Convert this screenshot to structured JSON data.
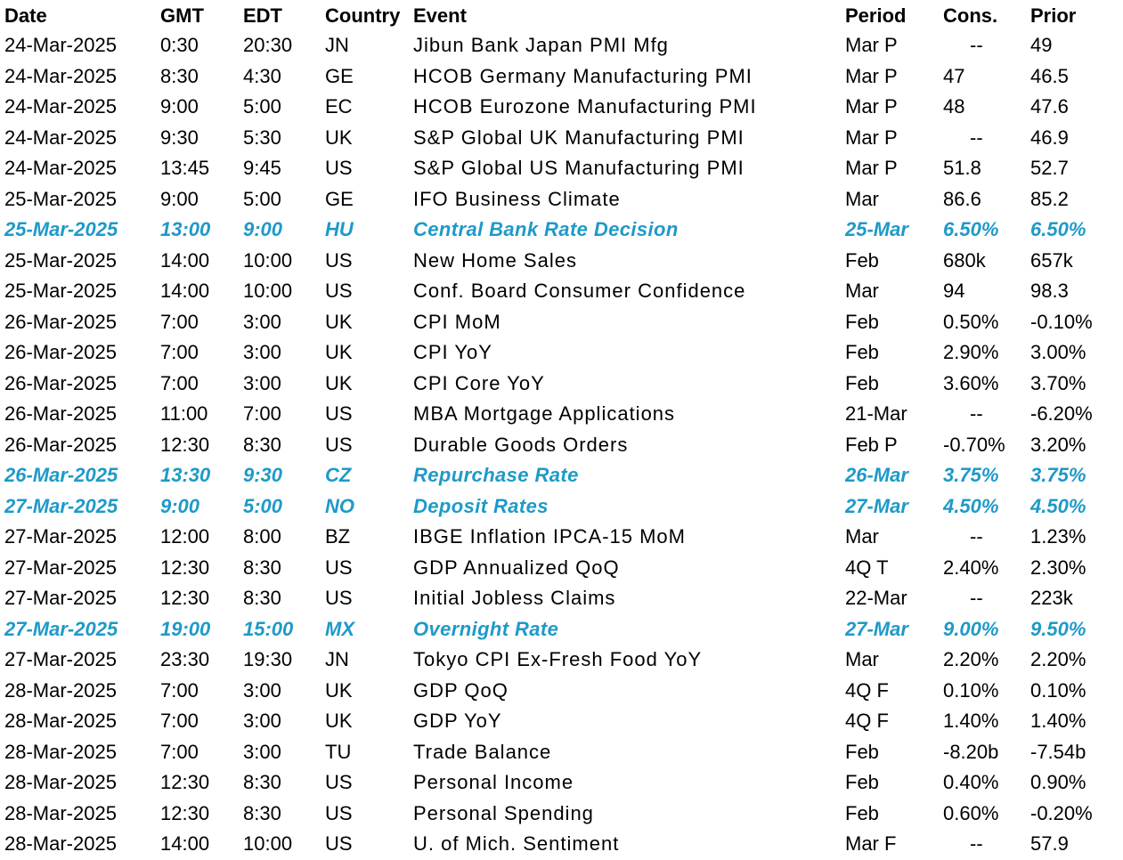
{
  "accent_color": "#1e9ac8",
  "headers": {
    "date": "Date",
    "gmt": "GMT",
    "edt": "EDT",
    "country": "Country",
    "event": "Event",
    "period": "Period",
    "cons": "Cons.",
    "prior": "Prior"
  },
  "rows": [
    {
      "date": "24-Mar-2025",
      "gmt": "0:30",
      "edt": "20:30",
      "country": "JN",
      "event": "Jibun Bank Japan PMI Mfg",
      "period": "Mar P",
      "cons": "--",
      "prior": "49",
      "highlight": false
    },
    {
      "date": "24-Mar-2025",
      "gmt": "8:30",
      "edt": "4:30",
      "country": "GE",
      "event": "HCOB Germany Manufacturing PMI",
      "period": "Mar P",
      "cons": "47",
      "prior": "46.5",
      "highlight": false
    },
    {
      "date": "24-Mar-2025",
      "gmt": "9:00",
      "edt": "5:00",
      "country": "EC",
      "event": "HCOB Eurozone Manufacturing PMI",
      "period": "Mar P",
      "cons": "48",
      "prior": "47.6",
      "highlight": false
    },
    {
      "date": "24-Mar-2025",
      "gmt": "9:30",
      "edt": "5:30",
      "country": "UK",
      "event": "S&P Global UK Manufacturing PMI",
      "period": "Mar P",
      "cons": "--",
      "prior": "46.9",
      "highlight": false
    },
    {
      "date": "24-Mar-2025",
      "gmt": "13:45",
      "edt": "9:45",
      "country": "US",
      "event": "S&P Global US Manufacturing PMI",
      "period": "Mar P",
      "cons": "51.8",
      "prior": "52.7",
      "highlight": false
    },
    {
      "date": "25-Mar-2025",
      "gmt": "9:00",
      "edt": "5:00",
      "country": "GE",
      "event": "IFO Business Climate",
      "period": "Mar",
      "cons": "86.6",
      "prior": "85.2",
      "highlight": false
    },
    {
      "date": "25-Mar-2025",
      "gmt": "13:00",
      "edt": "9:00",
      "country": "HU",
      "event": "Central Bank Rate Decision",
      "period": "25-Mar",
      "cons": "6.50%",
      "prior": "6.50%",
      "highlight": true
    },
    {
      "date": "25-Mar-2025",
      "gmt": "14:00",
      "edt": "10:00",
      "country": "US",
      "event": "New Home Sales",
      "period": "Feb",
      "cons": "680k",
      "prior": "657k",
      "highlight": false
    },
    {
      "date": "25-Mar-2025",
      "gmt": "14:00",
      "edt": "10:00",
      "country": "US",
      "event": "Conf. Board Consumer Confidence",
      "period": "Mar",
      "cons": "94",
      "prior": "98.3",
      "highlight": false
    },
    {
      "date": "26-Mar-2025",
      "gmt": "7:00",
      "edt": "3:00",
      "country": "UK",
      "event": "CPI MoM",
      "period": "Feb",
      "cons": "0.50%",
      "prior": "-0.10%",
      "highlight": false
    },
    {
      "date": "26-Mar-2025",
      "gmt": "7:00",
      "edt": "3:00",
      "country": "UK",
      "event": "CPI YoY",
      "period": "Feb",
      "cons": "2.90%",
      "prior": "3.00%",
      "highlight": false
    },
    {
      "date": "26-Mar-2025",
      "gmt": "7:00",
      "edt": "3:00",
      "country": "UK",
      "event": "CPI Core YoY",
      "period": "Feb",
      "cons": "3.60%",
      "prior": "3.70%",
      "highlight": false
    },
    {
      "date": "26-Mar-2025",
      "gmt": "11:00",
      "edt": "7:00",
      "country": "US",
      "event": "MBA Mortgage Applications",
      "period": "21-Mar",
      "cons": "--",
      "prior": "-6.20%",
      "highlight": false
    },
    {
      "date": "26-Mar-2025",
      "gmt": "12:30",
      "edt": "8:30",
      "country": "US",
      "event": "Durable Goods Orders",
      "period": "Feb P",
      "cons": "-0.70%",
      "prior": "3.20%",
      "highlight": false
    },
    {
      "date": "26-Mar-2025",
      "gmt": "13:30",
      "edt": "9:30",
      "country": "CZ",
      "event": "Repurchase Rate",
      "period": "26-Mar",
      "cons": "3.75%",
      "prior": "3.75%",
      "highlight": true
    },
    {
      "date": "27-Mar-2025",
      "gmt": "9:00",
      "edt": "5:00",
      "country": "NO",
      "event": "Deposit Rates",
      "period": "27-Mar",
      "cons": "4.50%",
      "prior": "4.50%",
      "highlight": true
    },
    {
      "date": "27-Mar-2025",
      "gmt": "12:00",
      "edt": "8:00",
      "country": "BZ",
      "event": "IBGE Inflation IPCA-15 MoM",
      "period": "Mar",
      "cons": "--",
      "prior": "1.23%",
      "highlight": false
    },
    {
      "date": "27-Mar-2025",
      "gmt": "12:30",
      "edt": "8:30",
      "country": "US",
      "event": "GDP Annualized QoQ",
      "period": "4Q T",
      "cons": "2.40%",
      "prior": "2.30%",
      "highlight": false
    },
    {
      "date": "27-Mar-2025",
      "gmt": "12:30",
      "edt": "8:30",
      "country": "US",
      "event": "Initial Jobless Claims",
      "period": "22-Mar",
      "cons": "--",
      "prior": "223k",
      "highlight": false
    },
    {
      "date": "27-Mar-2025",
      "gmt": "19:00",
      "edt": "15:00",
      "country": "MX",
      "event": "Overnight Rate",
      "period": "27-Mar",
      "cons": "9.00%",
      "prior": "9.50%",
      "highlight": true
    },
    {
      "date": "27-Mar-2025",
      "gmt": "23:30",
      "edt": "19:30",
      "country": "JN",
      "event": "Tokyo CPI Ex-Fresh Food YoY",
      "period": "Mar",
      "cons": "2.20%",
      "prior": "2.20%",
      "highlight": false
    },
    {
      "date": "28-Mar-2025",
      "gmt": "7:00",
      "edt": "3:00",
      "country": "UK",
      "event": "GDP QoQ",
      "period": "4Q F",
      "cons": "0.10%",
      "prior": "0.10%",
      "highlight": false
    },
    {
      "date": "28-Mar-2025",
      "gmt": "7:00",
      "edt": "3:00",
      "country": "UK",
      "event": "GDP YoY",
      "period": "4Q F",
      "cons": "1.40%",
      "prior": "1.40%",
      "highlight": false
    },
    {
      "date": "28-Mar-2025",
      "gmt": "7:00",
      "edt": "3:00",
      "country": "TU",
      "event": "Trade Balance",
      "period": "Feb",
      "cons": "-8.20b",
      "prior": "-7.54b",
      "highlight": false
    },
    {
      "date": "28-Mar-2025",
      "gmt": "12:30",
      "edt": "8:30",
      "country": "US",
      "event": "Personal Income",
      "period": "Feb",
      "cons": "0.40%",
      "prior": "0.90%",
      "highlight": false
    },
    {
      "date": "28-Mar-2025",
      "gmt": "12:30",
      "edt": "8:30",
      "country": "US",
      "event": "Personal Spending",
      "period": "Feb",
      "cons": "0.60%",
      "prior": "-0.20%",
      "highlight": false
    },
    {
      "date": "28-Mar-2025",
      "gmt": "14:00",
      "edt": "10:00",
      "country": "US",
      "event": "U. of Mich. Sentiment",
      "period": "Mar F",
      "cons": "--",
      "prior": "57.9",
      "highlight": false
    }
  ]
}
